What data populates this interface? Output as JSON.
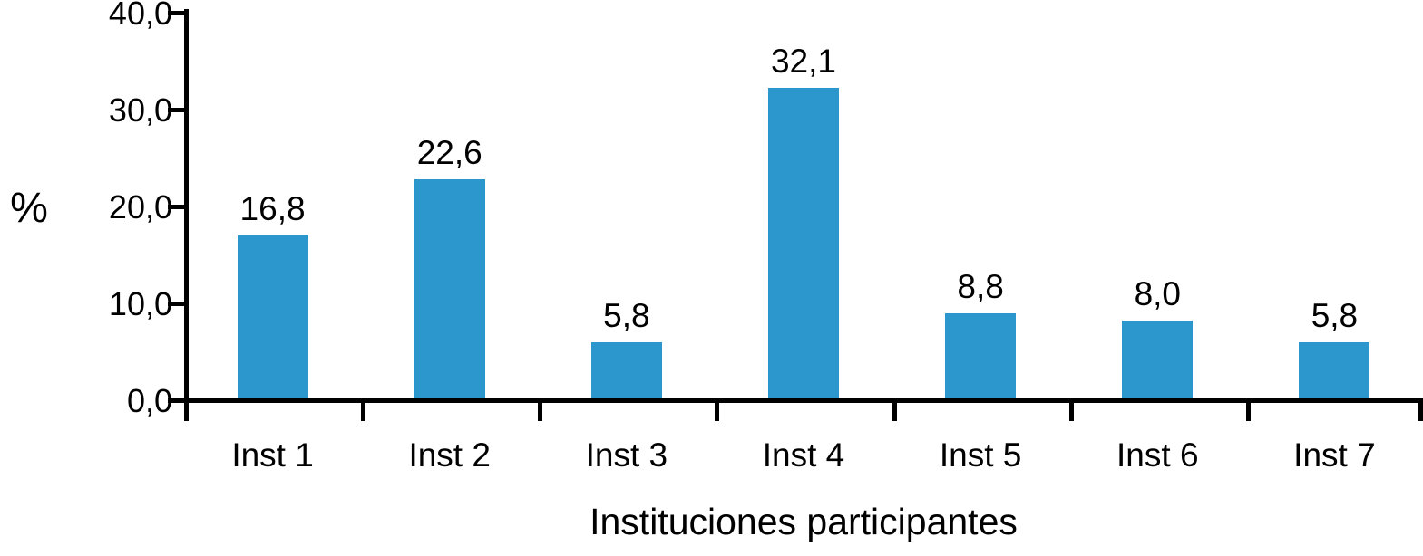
{
  "chart_data": {
    "type": "bar",
    "title": "",
    "categories": [
      "Inst 1",
      "Inst 2",
      "Inst 3",
      "Inst 4",
      "Inst 5",
      "Inst 6",
      "Inst 7"
    ],
    "values": [
      16.8,
      22.6,
      5.8,
      32.1,
      8.8,
      8.0,
      5.8
    ],
    "value_labels": [
      "16,8",
      "22,6",
      "5,8",
      "32,1",
      "8,8",
      "8,0",
      "5,8"
    ],
    "xlabel": "Instituciones participantes",
    "ylabel": "%",
    "ylim": [
      0,
      40
    ],
    "yticks": [
      0,
      10,
      20,
      30,
      40
    ],
    "ytick_labels": [
      "0,0",
      "10,0",
      "20,0",
      "30,0",
      "40,0"
    ],
    "grid": false,
    "legend": false,
    "bar_color": "#2b97cd",
    "axis_color": "#000000",
    "text_color": "#000000"
  }
}
